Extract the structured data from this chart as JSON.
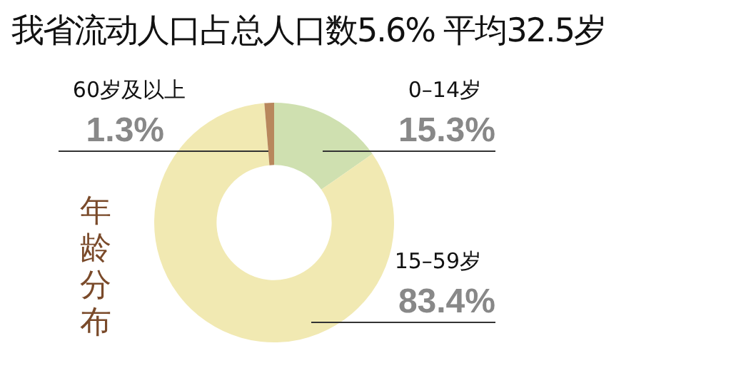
{
  "chart_data": {
    "type": "donut",
    "title": "我省流动人口占总人口数5.6% 平均32.5岁",
    "categories": [
      "0–14岁",
      "15–59岁",
      "60岁及以上"
    ],
    "values": [
      15.3,
      83.4,
      1.3
    ],
    "value_labels": [
      "15.3%",
      "83.4%",
      "1.3%"
    ],
    "colors": [
      "#cfe0b0",
      "#f1e9b2",
      "#b8875c"
    ],
    "annotations": [
      "年龄分布"
    ],
    "legend": false
  }
}
